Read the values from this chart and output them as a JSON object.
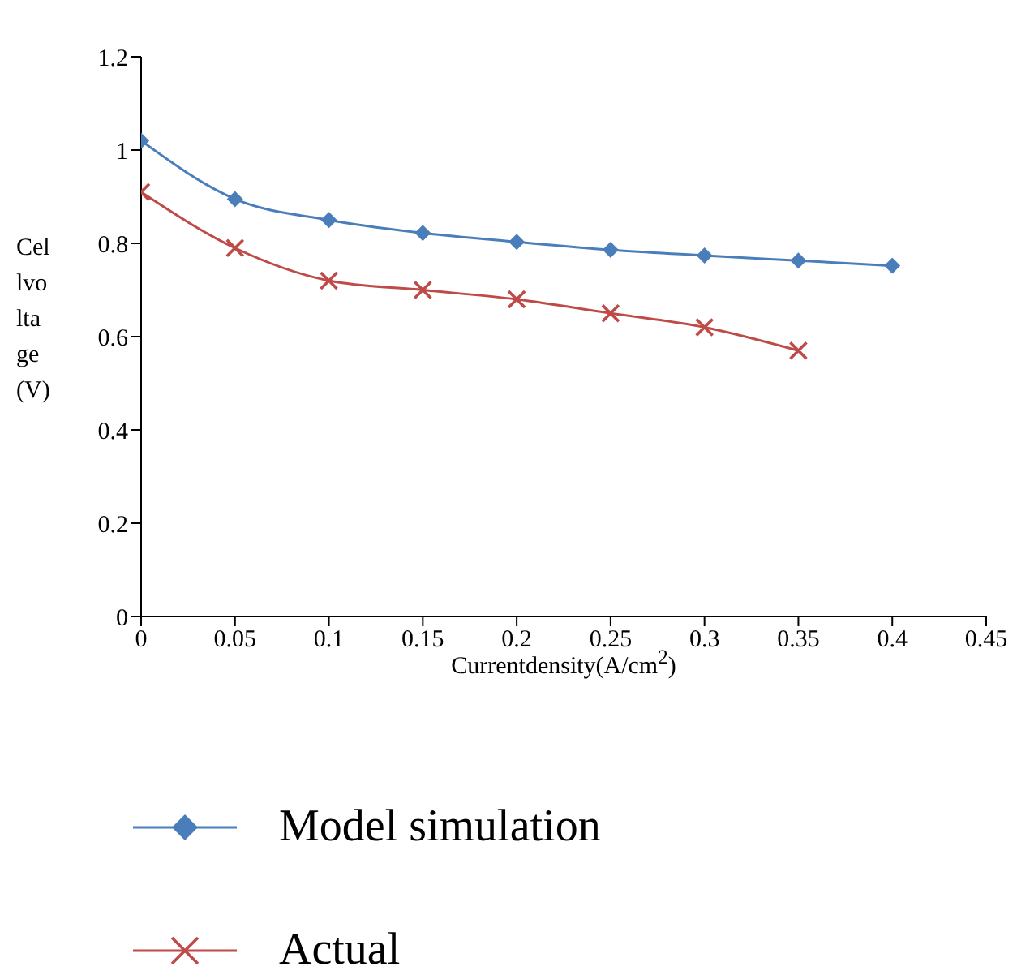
{
  "chart_data": {
    "type": "line",
    "xlabel": "Currentdensity(A/cm$^{2}$)",
    "ylabel": "Cellvoltage(V)",
    "xlim": [
      0,
      0.45
    ],
    "xticks": [
      0,
      0.05,
      0.1,
      0.15,
      0.2,
      0.25,
      0.3,
      0.35,
      0.4,
      0.45
    ],
    "ylim": [
      0,
      1.2
    ],
    "yticks": [
      0,
      0.2,
      0.4,
      0.6,
      0.8,
      1,
      1.2
    ],
    "grid": false,
    "legend": "bottom",
    "series": [
      {
        "name": "Model simulation",
        "color": "#4a7ebb",
        "marker": "diamond",
        "x": [
          0,
          0.05,
          0.1,
          0.15,
          0.2,
          0.25,
          0.3,
          0.35,
          0.4
        ],
        "values": [
          1.02,
          0.895,
          0.85,
          0.822,
          0.803,
          0.786,
          0.774,
          0.763,
          0.752
        ]
      },
      {
        "name": "Actual",
        "color": "#be4b48",
        "marker": "cross",
        "x": [
          0,
          0.05,
          0.1,
          0.15,
          0.2,
          0.25,
          0.3,
          0.35
        ],
        "values": [
          0.91,
          0.79,
          0.72,
          0.7,
          0.68,
          0.65,
          0.62,
          0.57
        ]
      }
    ]
  }
}
